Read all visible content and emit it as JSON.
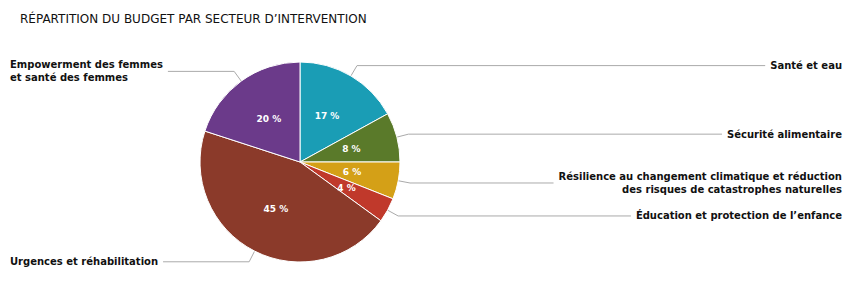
{
  "chart_data": {
    "type": "pie",
    "title": "RÉPARTITION DU BUDGET PAR SECTEUR D’INTERVENTION",
    "categories": [
      "Santé et eau",
      "Sécurité alimentaire",
      "Résilience au changement climatique et réduction\ndes risques de catastrophes naturelles",
      "Éducation et protection de l’enfance",
      "Urgences et réhabilitation",
      "Empowerment des femmes\net santé des femmes"
    ],
    "values": [
      17,
      8,
      6,
      4,
      45,
      20
    ],
    "value_labels": [
      "17 %",
      "8 %",
      "6 %",
      "4 %",
      "45 %",
      "20 %"
    ],
    "colors": [
      "#1a9db5",
      "#5a7a2a",
      "#d4a017",
      "#c0392b",
      "#8b3a2a",
      "#6b3a8a"
    ],
    "data_labels": true
  }
}
